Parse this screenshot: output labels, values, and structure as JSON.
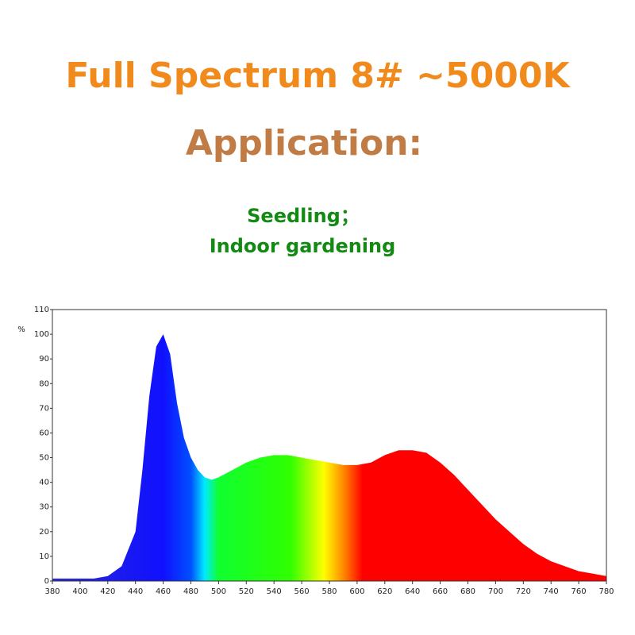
{
  "chart_data": {
    "type": "area",
    "title": "Full Spectrum 8# ~5000K",
    "subtitle": "Application:",
    "annotations": [
      "Seedling；",
      "Indoor gardening"
    ],
    "y_label": "%",
    "x": [
      380,
      390,
      400,
      410,
      420,
      430,
      440,
      445,
      450,
      455,
      460,
      465,
      470,
      475,
      480,
      485,
      490,
      495,
      500,
      510,
      520,
      530,
      540,
      550,
      560,
      570,
      580,
      590,
      600,
      610,
      620,
      630,
      640,
      650,
      660,
      670,
      680,
      690,
      700,
      710,
      720,
      730,
      740,
      750,
      760,
      770,
      780
    ],
    "values": [
      1,
      1,
      1,
      1,
      2,
      6,
      20,
      45,
      75,
      95,
      100,
      92,
      72,
      58,
      50,
      45,
      42,
      41,
      42,
      45,
      48,
      50,
      51,
      51,
      50,
      49,
      48,
      47,
      47,
      48,
      51,
      53,
      53,
      52,
      48,
      43,
      37,
      31,
      25,
      20,
      15,
      11,
      8,
      6,
      4,
      3,
      2
    ],
    "xlim": [
      380,
      780
    ],
    "ylim": [
      0,
      110
    ],
    "xticks": [
      380,
      400,
      420,
      440,
      460,
      480,
      500,
      520,
      540,
      560,
      580,
      600,
      620,
      640,
      660,
      680,
      700,
      720,
      740,
      760,
      780
    ],
    "yticks": [
      0,
      10,
      20,
      30,
      40,
      50,
      60,
      70,
      80,
      90,
      100,
      110
    ]
  }
}
